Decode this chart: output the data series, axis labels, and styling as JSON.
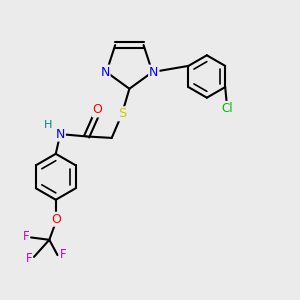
{
  "background_color": "#ebebeb",
  "atom_colors": {
    "N": "#0000ff",
    "S": "#cccc00",
    "O": "#ff0000",
    "Cl": "#00bb00",
    "F": "#cc00cc",
    "H": "#008888",
    "C": "#000000"
  },
  "figsize": [
    3.0,
    3.0
  ],
  "dpi": 100,
  "xlim": [
    0,
    10
  ],
  "ylim": [
    0,
    10
  ]
}
